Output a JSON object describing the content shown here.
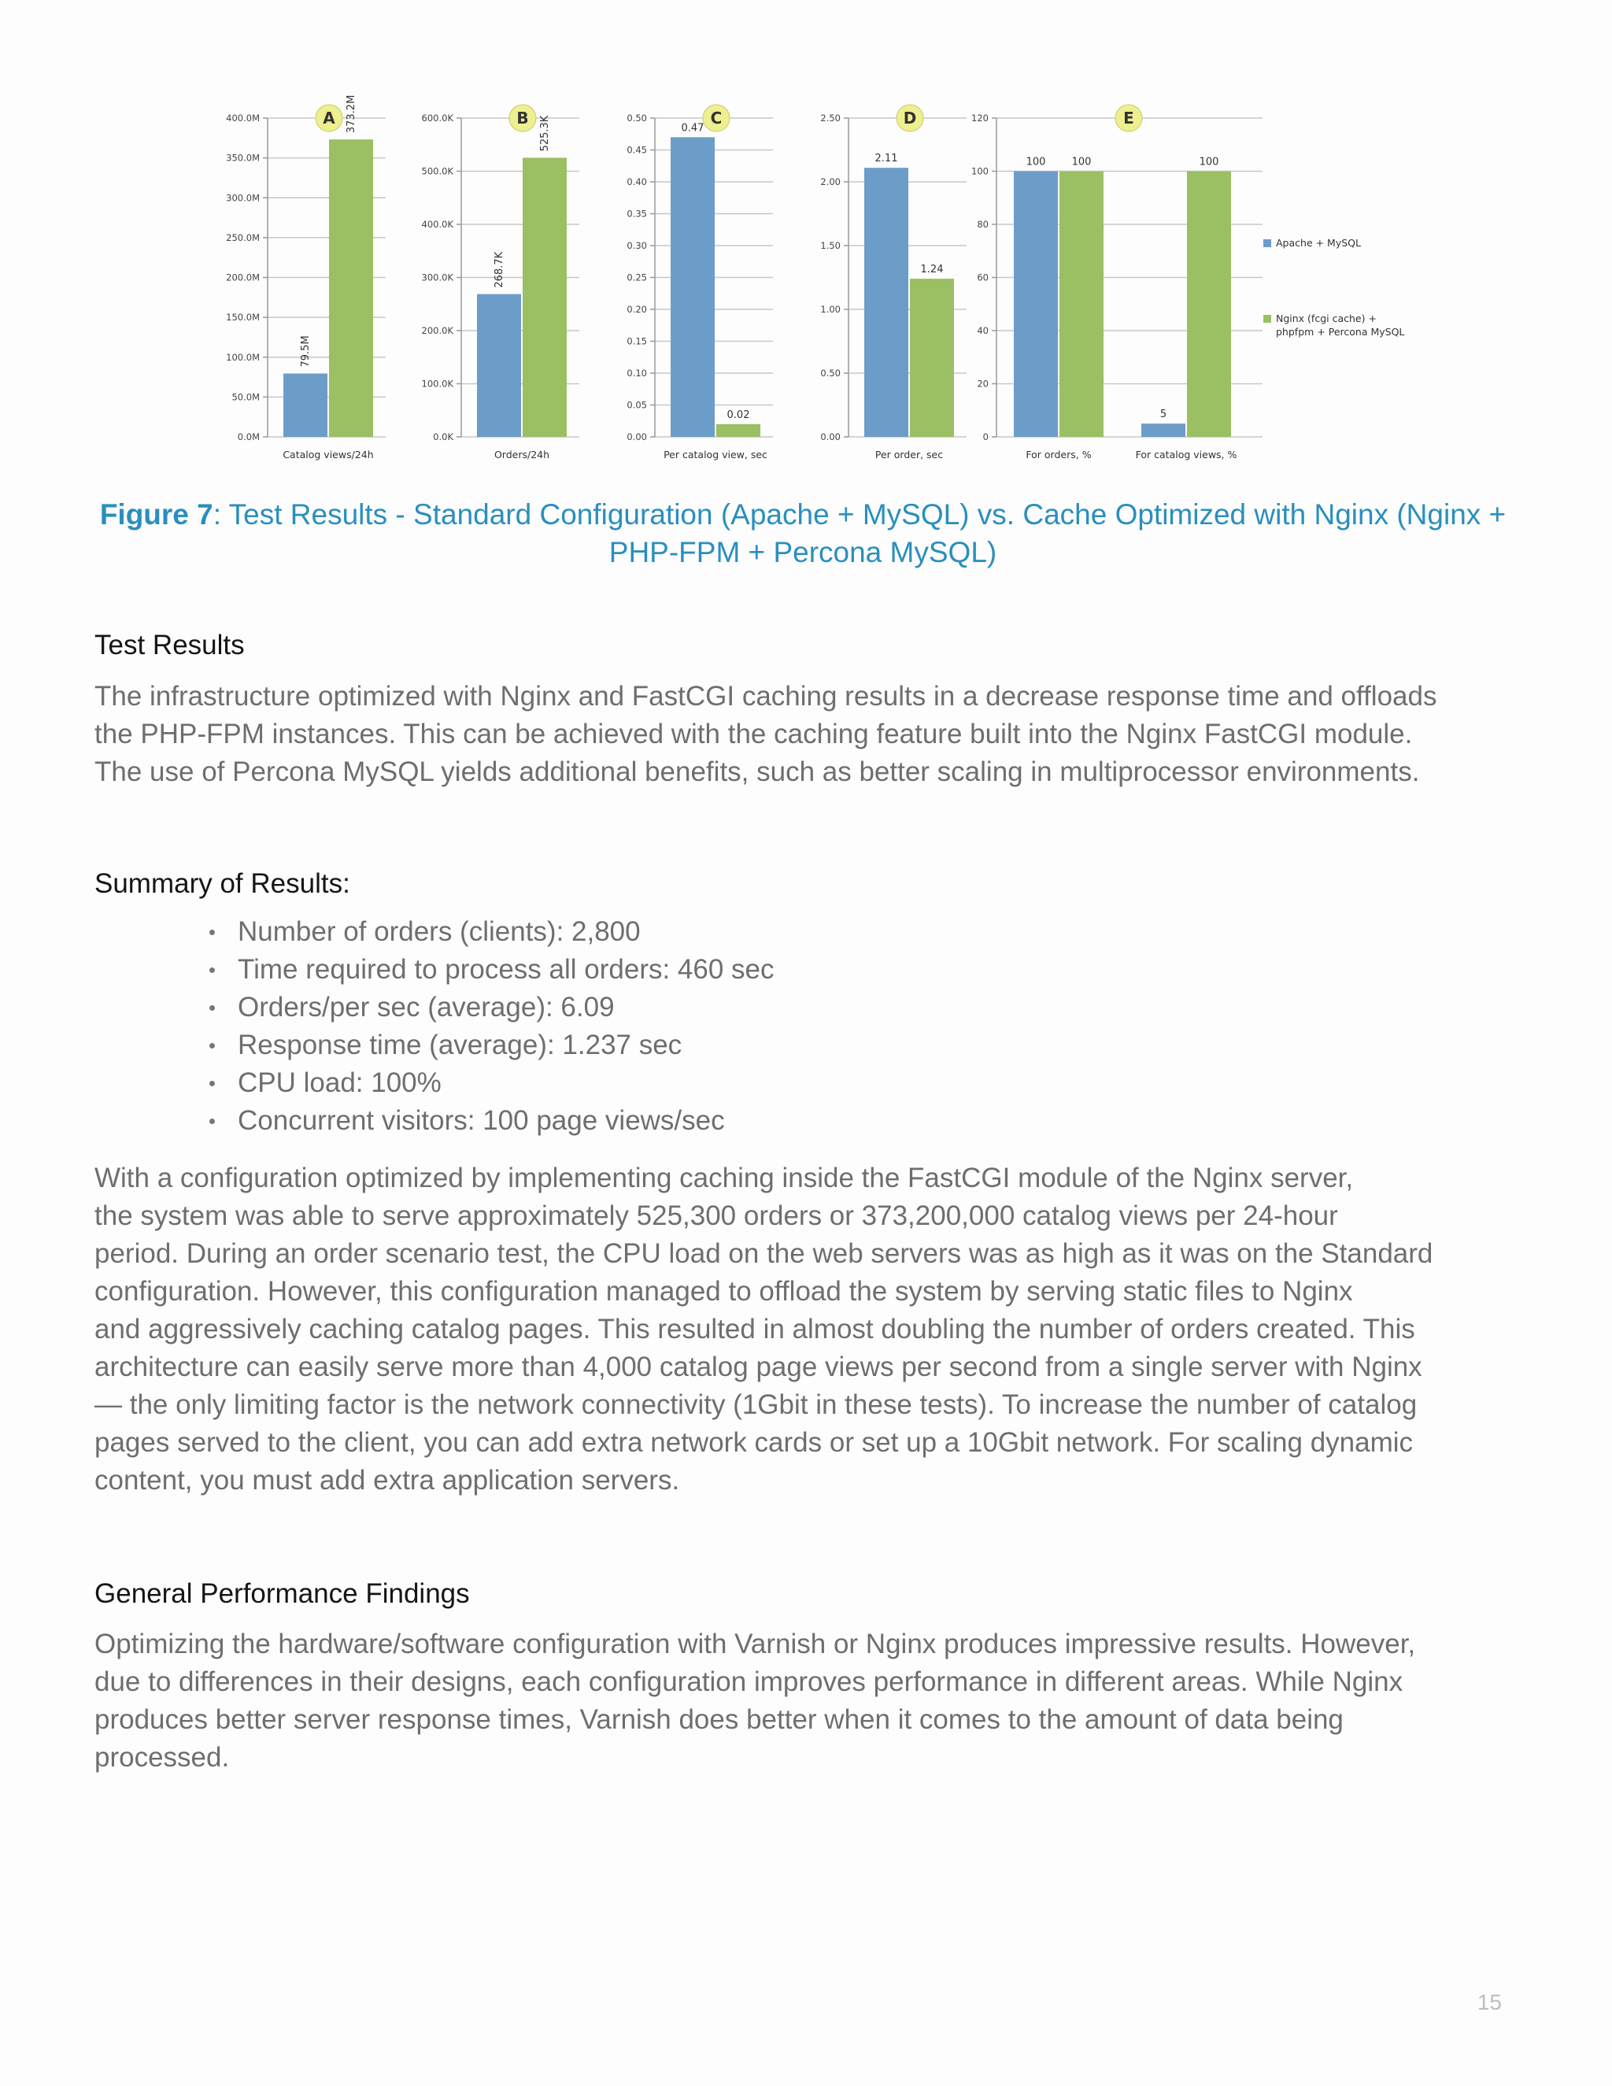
{
  "chart_data": [
    {
      "type": "bar",
      "label": "A",
      "categories": [
        "Catalog views/24h"
      ],
      "series": [
        {
          "name": "Apache + MySQL",
          "values": [
            79.5
          ],
          "labels": [
            "79.5M"
          ]
        },
        {
          "name": "Nginx (fcgi cache) + phpfpm + Percona MySQL",
          "values": [
            373.2
          ],
          "labels": [
            "373.2M"
          ]
        }
      ],
      "ylim": [
        0,
        400
      ],
      "yticks": [
        0,
        50,
        100,
        150,
        200,
        250,
        300,
        350,
        400
      ],
      "ytick_labels": [
        "0.0M",
        "50.0M",
        "100.0M",
        "150.0M",
        "200.0M",
        "250.0M",
        "300.0M",
        "350.0M",
        "400.0M"
      ],
      "label_rotated": true
    },
    {
      "type": "bar",
      "label": "B",
      "categories": [
        "Orders/24h"
      ],
      "series": [
        {
          "name": "Apache + MySQL",
          "values": [
            268.7
          ],
          "labels": [
            "268.7K"
          ]
        },
        {
          "name": "Nginx (fcgi cache) + phpfpm + Percona MySQL",
          "values": [
            525.3
          ],
          "labels": [
            "525.3K"
          ]
        }
      ],
      "ylim": [
        0,
        600
      ],
      "yticks": [
        0,
        100,
        200,
        300,
        400,
        500,
        600
      ],
      "ytick_labels": [
        "0.0K",
        "100.0K",
        "200.0K",
        "300.0K",
        "400.0K",
        "500.0K",
        "600.0K"
      ],
      "label_rotated": true
    },
    {
      "type": "bar",
      "label": "C",
      "categories": [
        "Per catalog view, sec"
      ],
      "series": [
        {
          "name": "Apache + MySQL",
          "values": [
            0.47
          ],
          "labels": [
            "0.47"
          ]
        },
        {
          "name": "Nginx (fcgi cache) + phpfpm + Percona MySQL",
          "values": [
            0.02
          ],
          "labels": [
            "0.02"
          ]
        }
      ],
      "ylim": [
        0,
        0.5
      ],
      "yticks": [
        0,
        0.05,
        0.1,
        0.15,
        0.2,
        0.25,
        0.3,
        0.35,
        0.4,
        0.45,
        0.5
      ],
      "ytick_labels": [
        "0.00",
        "0.05",
        "0.10",
        "0.15",
        "0.20",
        "0.25",
        "0.30",
        "0.35",
        "0.40",
        "0.45",
        "0.50"
      ],
      "label_rotated": false
    },
    {
      "type": "bar",
      "label": "D",
      "categories": [
        "Per order, sec"
      ],
      "series": [
        {
          "name": "Apache + MySQL",
          "values": [
            2.11
          ],
          "labels": [
            "2.11"
          ]
        },
        {
          "name": "Nginx (fcgi cache) + phpfpm + Percona MySQL",
          "values": [
            1.24
          ],
          "labels": [
            "1.24"
          ]
        }
      ],
      "ylim": [
        0,
        2.5
      ],
      "yticks": [
        0,
        0.5,
        1,
        1.5,
        2,
        2.5
      ],
      "ytick_labels": [
        "0.00",
        "0.50",
        "1.00",
        "1.50",
        "2.00",
        "2.50"
      ],
      "label_rotated": false
    },
    {
      "type": "bar",
      "label": "E",
      "categories": [
        "For orders, %",
        "For catalog views, %"
      ],
      "series": [
        {
          "name": "Apache + MySQL",
          "values": [
            100,
            5
          ],
          "labels": [
            "100",
            "5"
          ]
        },
        {
          "name": "Nginx (fcgi cache) + phpfpm + Percona MySQL",
          "values": [
            100,
            100
          ],
          "labels": [
            "100",
            "100"
          ]
        }
      ],
      "ylim": [
        0,
        120
      ],
      "yticks": [
        0,
        20,
        40,
        60,
        80,
        100,
        120
      ],
      "ytick_labels": [
        "0",
        "20",
        "40",
        "60",
        "80",
        "100",
        "120"
      ],
      "label_rotated": false
    }
  ],
  "legend": {
    "placement": "right",
    "items": [
      {
        "label": "Apache + MySQL",
        "color": "#6c9dc9"
      },
      {
        "label_line1": "Nginx (fcgi cache) +",
        "label_line2": "phpfpm + Percona MySQL",
        "color": "#9bbf63"
      }
    ]
  },
  "colors": {
    "series1": "#6c9dc9",
    "series2": "#9bbf63",
    "badge": "#eef08f",
    "caption": "#2a8fbd"
  },
  "caption": {
    "prefix": "Figure 7",
    "line1": ": Test Results - Standard Configuration (Apache + MySQL) vs. Cache Optimized with Nginx (Nginx +",
    "line2": "PHP-FPM + Percona MySQL)"
  },
  "sections": {
    "test_results": {
      "heading": "Test Results",
      "lines": [
        "The infrastructure optimized with Nginx and FastCGI caching results in a decrease response time and offloads",
        "the PHP-FPM instances. This can be achieved with the caching feature built into the Nginx FastCGI module.",
        "The use of Percona MySQL yields additional benefits, such as better scaling in multiprocessor environments."
      ]
    },
    "summary": {
      "heading": "Summary of Results:",
      "bullets": [
        "Number of orders (clients): 2,800",
        "Time required to process all orders: 460 sec",
        "Orders/per sec (average): 6.09",
        "Response time (average): 1.237 sec",
        "CPU load: 100%",
        "Concurrent visitors: 100 page views/sec"
      ],
      "lines": [
        "With a configuration optimized by implementing caching inside the FastCGI module of the Nginx server,",
        "the system was able to serve approximately 525,300 orders or 373,200,000 catalog views per 24-hour",
        "period. During an order scenario test, the CPU load on the web servers was as high as it was on the Standard",
        "configuration. However, this configuration managed to offload the system by serving static files to Nginx",
        "and aggressively caching catalog pages. This resulted in almost doubling the number of orders created. This",
        "architecture can easily serve more than 4,000 catalog page views per second from a single server with Nginx",
        "— the only limiting factor is the network connectivity (1Gbit in these tests). To increase the number of catalog",
        "pages served to the client, you can add extra network cards or set up a 10Gbit network. For scaling dynamic",
        "content, you must add extra application servers."
      ]
    },
    "general": {
      "heading": "General Performance Findings",
      "lines": [
        "Optimizing the hardware/software configuration with Varnish or Nginx produces impressive results. However,",
        "due to differences in their designs, each configuration improves performance in different areas. While Nginx",
        "produces better server response times, Varnish does better when it comes to the amount of data being",
        "processed."
      ]
    }
  },
  "page_number": "15"
}
